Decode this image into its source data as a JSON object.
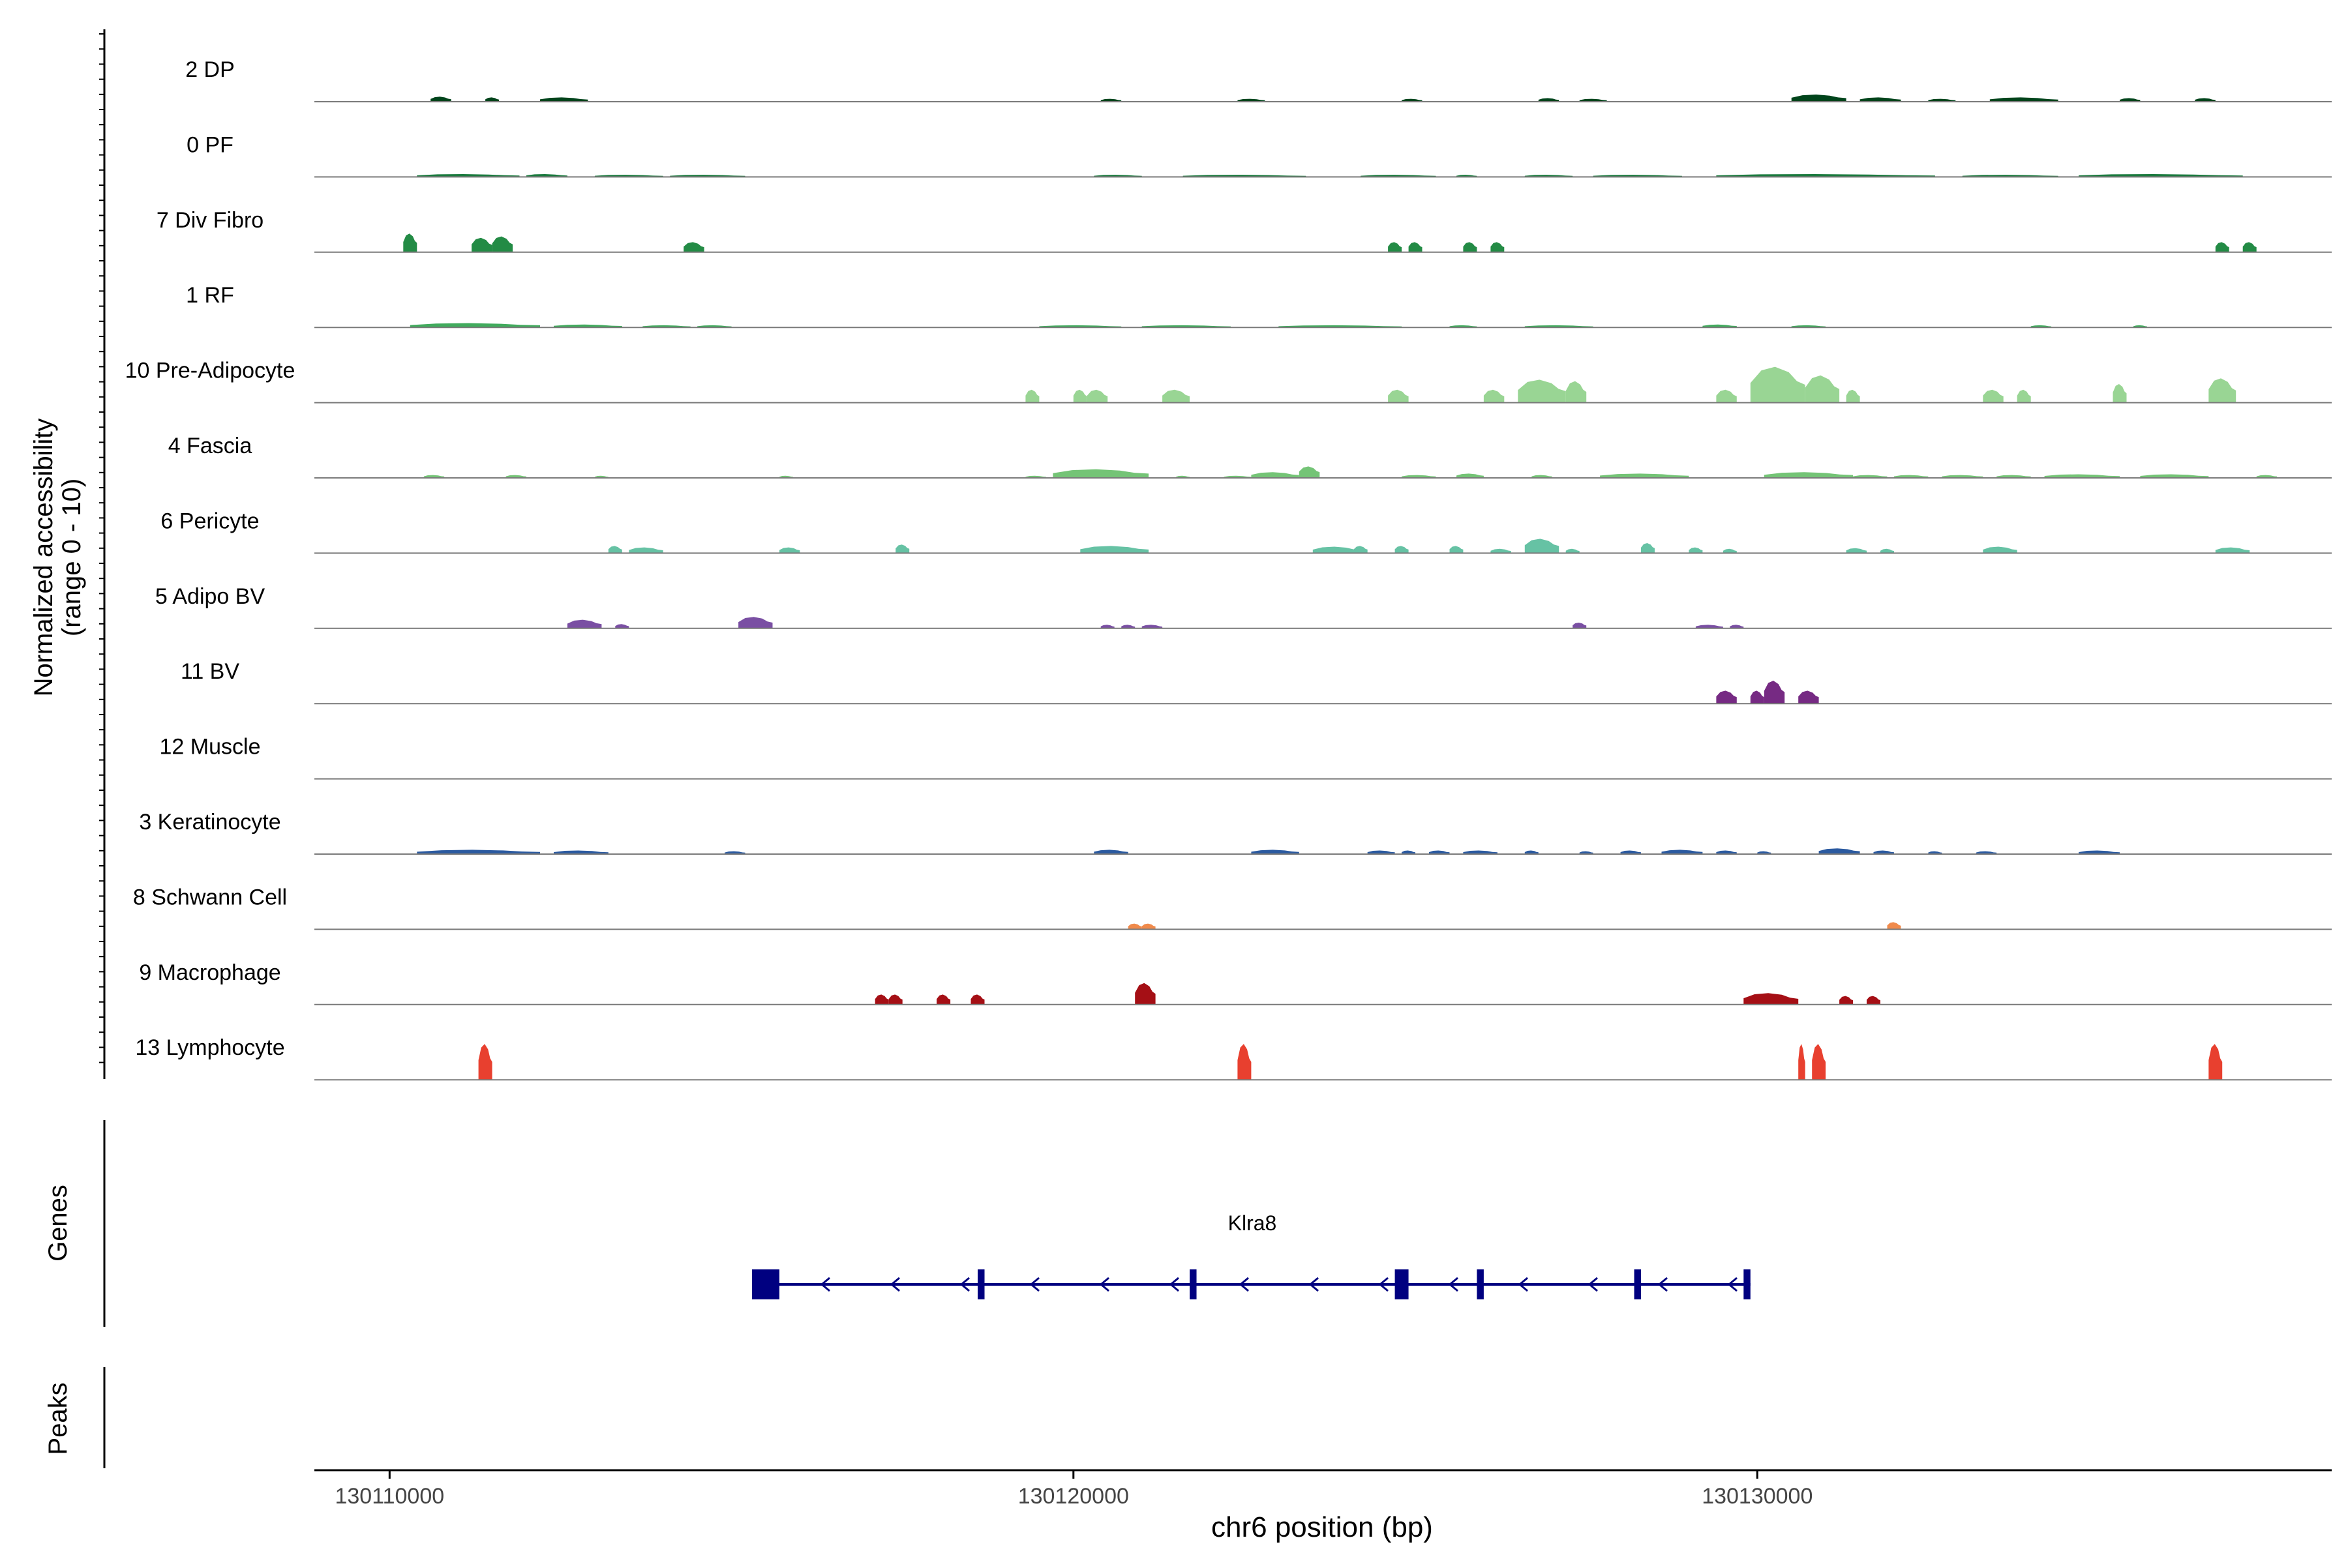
{
  "chart_data": {
    "type": "area",
    "title": "",
    "region": {
      "chromosome": "chr6",
      "start": 130108900,
      "end": 130138400
    },
    "xlabel": "chr6 position (bp)",
    "x_ticks": [
      130110000,
      130120000,
      130130000
    ],
    "x_tick_labels": [
      "130110000",
      "130120000",
      "130130000"
    ],
    "ylabel_line1": "Normalized accessibility",
    "ylabel_line2": "(range 0 - 10)",
    "ylim": [
      0,
      10
    ],
    "panel_labels": {
      "genes": "Genes",
      "peaks": "Peaks"
    },
    "tracks": [
      {
        "name": "2 DP",
        "color": "#00441b",
        "peaks": [
          [
            130110600,
            130110900,
            0.7
          ],
          [
            130111400,
            130111600,
            0.6
          ],
          [
            130112200,
            130112900,
            0.6
          ],
          [
            130120400,
            130120700,
            0.4
          ],
          [
            130122400,
            130122800,
            0.4
          ],
          [
            130124800,
            130125100,
            0.4
          ],
          [
            130126800,
            130127100,
            0.5
          ],
          [
            130127400,
            130127800,
            0.4
          ],
          [
            130130500,
            130131300,
            1.0
          ],
          [
            130131500,
            130132100,
            0.6
          ],
          [
            130132500,
            130132900,
            0.4
          ],
          [
            130133400,
            130134400,
            0.6
          ],
          [
            130135300,
            130135600,
            0.5
          ],
          [
            130136400,
            130136700,
            0.5
          ]
        ]
      },
      {
        "name": "0 PF",
        "color": "#1b7a3e",
        "peaks": [
          [
            130110400,
            130111900,
            0.4
          ],
          [
            130112000,
            130112600,
            0.4
          ],
          [
            130113000,
            130114000,
            0.3
          ],
          [
            130114100,
            130115200,
            0.3
          ],
          [
            130120300,
            130121000,
            0.3
          ],
          [
            130121600,
            130123400,
            0.3
          ],
          [
            130124200,
            130125300,
            0.3
          ],
          [
            130125600,
            130125900,
            0.3
          ],
          [
            130126600,
            130127300,
            0.3
          ],
          [
            130127600,
            130128900,
            0.3
          ],
          [
            130129400,
            130132600,
            0.4
          ],
          [
            130133000,
            130134400,
            0.3
          ],
          [
            130134700,
            130137100,
            0.4
          ]
        ]
      },
      {
        "name": "7 Div Fibro",
        "color": "#238b45",
        "peaks": [
          [
            130110200,
            130110400,
            2.6
          ],
          [
            130111200,
            130111500,
            2.0
          ],
          [
            130111500,
            130111800,
            2.2
          ],
          [
            130114300,
            130114600,
            1.4
          ],
          [
            130124600,
            130124800,
            1.4
          ],
          [
            130124900,
            130125100,
            1.4
          ],
          [
            130125700,
            130125900,
            1.4
          ],
          [
            130126100,
            130126300,
            1.4
          ],
          [
            130136700,
            130136900,
            1.4
          ],
          [
            130137100,
            130137300,
            1.4
          ]
        ]
      },
      {
        "name": "1 RF",
        "color": "#41ab5d",
        "peaks": [
          [
            130110300,
            130112200,
            0.6
          ],
          [
            130112400,
            130113400,
            0.4
          ],
          [
            130113700,
            130114400,
            0.3
          ],
          [
            130114500,
            130115000,
            0.3
          ],
          [
            130119500,
            130120700,
            0.3
          ],
          [
            130121000,
            130122300,
            0.3
          ],
          [
            130123000,
            130124800,
            0.3
          ],
          [
            130125500,
            130125900,
            0.3
          ],
          [
            130126600,
            130127600,
            0.3
          ],
          [
            130129200,
            130129700,
            0.4
          ],
          [
            130130500,
            130131000,
            0.3
          ],
          [
            130134000,
            130134300,
            0.3
          ],
          [
            130135500,
            130135700,
            0.3
          ]
        ]
      },
      {
        "name": "10 Pre-Adipocyte",
        "color": "#99d594",
        "peaks": [
          [
            130119300,
            130119500,
            1.8
          ],
          [
            130120000,
            130120200,
            1.8
          ],
          [
            130120200,
            130120500,
            1.8
          ],
          [
            130121300,
            130121700,
            1.8
          ],
          [
            130124600,
            130124900,
            1.8
          ],
          [
            130126000,
            130126300,
            1.8
          ],
          [
            130126500,
            130127200,
            3.2
          ],
          [
            130127200,
            130127500,
            3.0
          ],
          [
            130129400,
            130129700,
            1.8
          ],
          [
            130129900,
            130130700,
            5.0
          ],
          [
            130130700,
            130131200,
            3.8
          ],
          [
            130131300,
            130131500,
            1.8
          ],
          [
            130133300,
            130133600,
            1.8
          ],
          [
            130133800,
            130134000,
            1.8
          ],
          [
            130135200,
            130135400,
            2.6
          ],
          [
            130136600,
            130137000,
            3.4
          ]
        ]
      },
      {
        "name": "4 Fascia",
        "color": "#74c476",
        "peaks": [
          [
            130110500,
            130110800,
            0.4
          ],
          [
            130111700,
            130112000,
            0.4
          ],
          [
            130113000,
            130113200,
            0.3
          ],
          [
            130115700,
            130115900,
            0.3
          ],
          [
            130119300,
            130119600,
            0.3
          ],
          [
            130119700,
            130121100,
            1.2
          ],
          [
            130121500,
            130121700,
            0.3
          ],
          [
            130122200,
            130122600,
            0.3
          ],
          [
            130122600,
            130123300,
            0.8
          ],
          [
            130123300,
            130123600,
            1.6
          ],
          [
            130124800,
            130125300,
            0.4
          ],
          [
            130125600,
            130126000,
            0.6
          ],
          [
            130126700,
            130127000,
            0.4
          ],
          [
            130127700,
            130129000,
            0.6
          ],
          [
            130130100,
            130131400,
            0.8
          ],
          [
            130131400,
            130131900,
            0.4
          ],
          [
            130132000,
            130132500,
            0.4
          ],
          [
            130132700,
            130133300,
            0.4
          ],
          [
            130133500,
            130134000,
            0.4
          ],
          [
            130134200,
            130135300,
            0.5
          ],
          [
            130135600,
            130136600,
            0.5
          ],
          [
            130137300,
            130137600,
            0.4
          ]
        ]
      },
      {
        "name": "6 Pericyte",
        "color": "#66c2a4",
        "peaks": [
          [
            130113200,
            130113400,
            1.0
          ],
          [
            130113500,
            130114000,
            0.8
          ],
          [
            130115700,
            130116000,
            0.8
          ],
          [
            130117400,
            130117600,
            1.2
          ],
          [
            130120100,
            130121100,
            1.0
          ],
          [
            130123500,
            130124200,
            0.9
          ],
          [
            130124100,
            130124300,
            1.0
          ],
          [
            130124700,
            130124900,
            1.0
          ],
          [
            130125500,
            130125700,
            1.0
          ],
          [
            130126100,
            130126400,
            0.6
          ],
          [
            130126600,
            130127100,
            2.0
          ],
          [
            130127200,
            130127400,
            0.6
          ],
          [
            130128300,
            130128500,
            1.4
          ],
          [
            130129000,
            130129200,
            0.8
          ],
          [
            130129500,
            130129700,
            0.6
          ],
          [
            130131300,
            130131600,
            0.7
          ],
          [
            130131800,
            130132000,
            0.6
          ],
          [
            130133300,
            130133800,
            0.9
          ],
          [
            130136700,
            130137200,
            0.8
          ]
        ]
      },
      {
        "name": "5 Adipo BV",
        "color": "#7a4fa3",
        "peaks": [
          [
            130112600,
            130113100,
            1.2
          ],
          [
            130113300,
            130113500,
            0.6
          ],
          [
            130115100,
            130115600,
            1.6
          ],
          [
            130120400,
            130120600,
            0.5
          ],
          [
            130120700,
            130120900,
            0.5
          ],
          [
            130121000,
            130121300,
            0.5
          ],
          [
            130127300,
            130127500,
            0.8
          ],
          [
            130129100,
            130129500,
            0.5
          ],
          [
            130129600,
            130129800,
            0.5
          ]
        ]
      },
      {
        "name": "11 BV",
        "color": "#762a83",
        "peaks": [
          [
            130129400,
            130129700,
            1.8
          ],
          [
            130129900,
            130130100,
            1.8
          ],
          [
            130130100,
            130130400,
            3.2
          ],
          [
            130130600,
            130130900,
            1.8
          ]
        ]
      },
      {
        "name": "12 Muscle",
        "color": "#555555",
        "peaks": []
      },
      {
        "name": "3 Keratinocyte",
        "color": "#2b5aa0",
        "peaks": [
          [
            130110400,
            130112200,
            0.6
          ],
          [
            130112400,
            130113200,
            0.5
          ],
          [
            130114900,
            130115200,
            0.4
          ],
          [
            130120300,
            130120800,
            0.6
          ],
          [
            130122600,
            130123300,
            0.6
          ],
          [
            130124300,
            130124700,
            0.5
          ],
          [
            130124800,
            130125000,
            0.5
          ],
          [
            130125200,
            130125500,
            0.5
          ],
          [
            130125700,
            130126200,
            0.5
          ],
          [
            130126600,
            130126800,
            0.5
          ],
          [
            130127400,
            130127600,
            0.4
          ],
          [
            130128000,
            130128300,
            0.5
          ],
          [
            130128600,
            130129200,
            0.6
          ],
          [
            130129400,
            130129700,
            0.5
          ],
          [
            130130000,
            130130200,
            0.4
          ],
          [
            130130900,
            130131500,
            0.8
          ],
          [
            130131700,
            130132000,
            0.5
          ],
          [
            130132500,
            130132700,
            0.4
          ],
          [
            130133200,
            130133500,
            0.4
          ],
          [
            130134700,
            130135300,
            0.5
          ]
        ]
      },
      {
        "name": "8 Schwann Cell",
        "color": "#f08a4b",
        "peaks": [
          [
            130120800,
            130121000,
            0.8
          ],
          [
            130121000,
            130121200,
            0.8
          ],
          [
            130131900,
            130132100,
            1.0
          ]
        ]
      },
      {
        "name": "9 Macrophage",
        "color": "#a50f15",
        "peaks": [
          [
            130117100,
            130117300,
            1.4
          ],
          [
            130117300,
            130117500,
            1.4
          ],
          [
            130118000,
            130118200,
            1.4
          ],
          [
            130118500,
            130118700,
            1.4
          ],
          [
            130120900,
            130121200,
            3.0
          ],
          [
            130129800,
            130130600,
            1.6
          ],
          [
            130131200,
            130131400,
            1.2
          ],
          [
            130131600,
            130131800,
            1.2
          ]
        ]
      },
      {
        "name": "13 Lymphocyte",
        "color": "#e8402f",
        "peaks": [
          [
            130111300,
            130111500,
            5.0
          ],
          [
            130122400,
            130122600,
            5.0
          ],
          [
            130130600,
            130130700,
            5.0
          ],
          [
            130130800,
            130131000,
            5.0
          ],
          [
            130136600,
            130136800,
            5.0
          ]
        ]
      }
    ],
    "gene": {
      "name": "Klra8",
      "start": 130115300,
      "end": 130129900,
      "strand": "-",
      "exons": [
        [
          130115300,
          130115500
        ],
        [
          130115500,
          130115700
        ],
        [
          130118600,
          130118700
        ],
        [
          130121700,
          130121800
        ],
        [
          130124700,
          130124900
        ],
        [
          130125900,
          130126000
        ],
        [
          130128200,
          130128300
        ],
        [
          130129800,
          130129900
        ]
      ]
    }
  }
}
